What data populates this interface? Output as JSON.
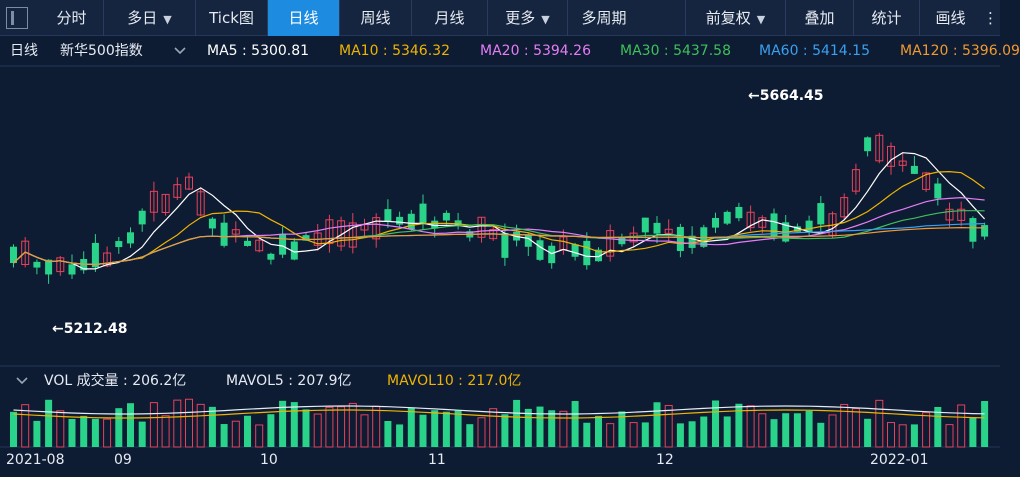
{
  "toolbar": {
    "items": [
      {
        "label": "分时"
      },
      {
        "label": "多日",
        "caret": "▼"
      },
      {
        "label": "Tick图"
      },
      {
        "label": "日线",
        "active": true
      },
      {
        "label": "周线"
      },
      {
        "label": "月线"
      },
      {
        "label": "更多",
        "caret": "▼"
      },
      {
        "label": "多周期"
      }
    ],
    "right_items": [
      {
        "label": "前复权",
        "caret": "▼"
      },
      {
        "label": "叠加"
      },
      {
        "label": "统计"
      },
      {
        "label": "画线"
      },
      {
        "label": "⋮"
      }
    ]
  },
  "header": {
    "period": "日线",
    "index_name": "新华500指数",
    "chevron": "chevron-down-icon"
  },
  "ma_legend": [
    {
      "label": "MA5 : 5300.81",
      "color": "#ffffff"
    },
    {
      "label": "MA10 : 5346.32",
      "color": "#f0b400"
    },
    {
      "label": "MA20 : 5394.26",
      "color": "#e57df5"
    },
    {
      "label": "MA30 : 5437.58",
      "color": "#3fc05a"
    },
    {
      "label": "MA60 : 5414.15",
      "color": "#3aa0f0"
    },
    {
      "label": "MA120 : 5396.09",
      "color": "#f09a30"
    }
  ],
  "annotations": {
    "high": "←5664.45",
    "low": "←5212.48"
  },
  "volume": {
    "caret": "▼",
    "vol": "VOL 成交量 : 206.2亿",
    "mavol5": "MAVOL5 : 207.9亿",
    "mavol10": "MAVOL10 : 217.0亿",
    "vol_color": "#e6ebf2",
    "mavol5_color": "#e6ebf2",
    "mavol10_color": "#f0b400"
  },
  "x_axis": {
    "labels": [
      "2021-08",
      "09",
      "10",
      "11",
      "12",
      "2022-01"
    ]
  },
  "colors": {
    "up": "#e8425a",
    "down": "#29d48a",
    "background": "#0d1b33",
    "grid": "#1a2c4a"
  }
}
